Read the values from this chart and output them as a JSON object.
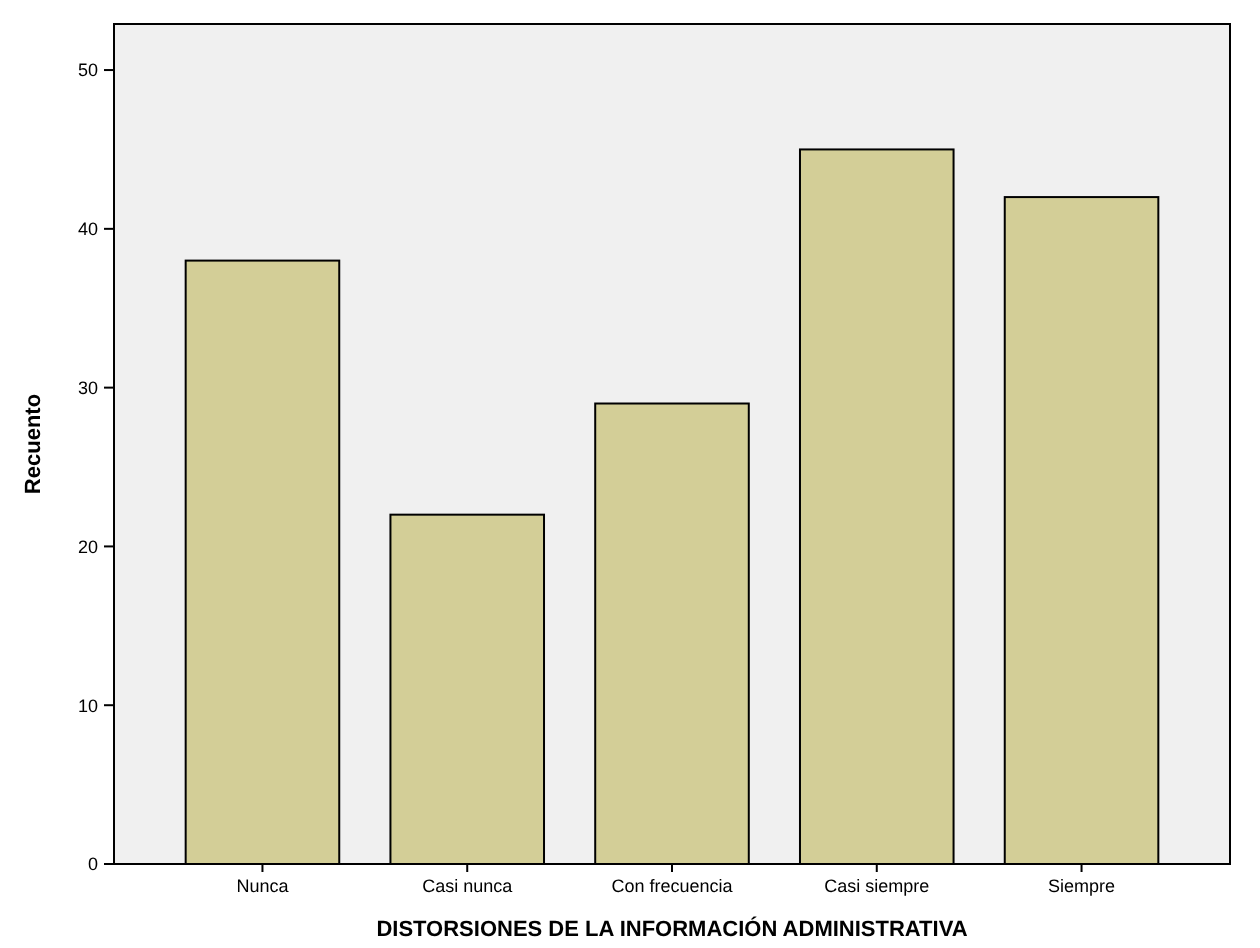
{
  "chart_data": {
    "type": "bar",
    "xlabel": "DISTORSIONES DE LA INFORMACIÓN ADMINISTRATIVA",
    "ylabel": "Recuento",
    "categories": [
      "Nunca",
      "Casi nunca",
      "Con frecuencia",
      "Casi siempre",
      "Siempre"
    ],
    "values": [
      38,
      22,
      29,
      45,
      42
    ],
    "color": "#d3ce97",
    "ylim": [
      0,
      52.9
    ],
    "yticks": [
      0,
      10,
      20,
      30,
      40,
      50
    ],
    "grid": false
  }
}
